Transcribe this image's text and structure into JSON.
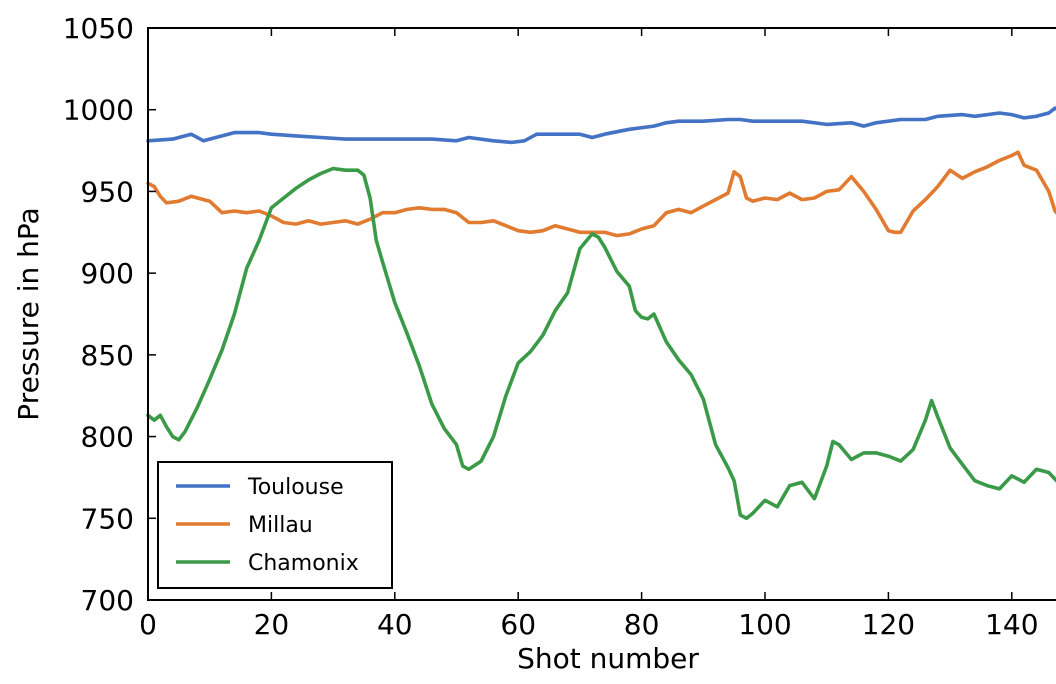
{
  "chart_data": {
    "type": "line",
    "xlabel": "Shot number",
    "ylabel": "Pressure in hPa",
    "xlim": [
      0,
      149
    ],
    "ylim": [
      700,
      1050
    ],
    "xticks": [
      0,
      20,
      40,
      60,
      80,
      100,
      120,
      140
    ],
    "yticks": [
      700,
      750,
      800,
      850,
      900,
      950,
      1000,
      1050
    ],
    "grid": false,
    "legend_position": "lower-left",
    "series": [
      {
        "name": "Toulouse",
        "color": "#4472c4",
        "points": [
          [
            0,
            981
          ],
          [
            4,
            982
          ],
          [
            6,
            984
          ],
          [
            7,
            985
          ],
          [
            9,
            981
          ],
          [
            12,
            984
          ],
          [
            14,
            986
          ],
          [
            18,
            986
          ],
          [
            20,
            985
          ],
          [
            24,
            984
          ],
          [
            28,
            983
          ],
          [
            32,
            982
          ],
          [
            36,
            982
          ],
          [
            40,
            982
          ],
          [
            46,
            982
          ],
          [
            50,
            981
          ],
          [
            52,
            983
          ],
          [
            56,
            981
          ],
          [
            59,
            980
          ],
          [
            61,
            981
          ],
          [
            63,
            985
          ],
          [
            66,
            985
          ],
          [
            70,
            985
          ],
          [
            72,
            983
          ],
          [
            74,
            985
          ],
          [
            78,
            988
          ],
          [
            82,
            990
          ],
          [
            84,
            992
          ],
          [
            86,
            993
          ],
          [
            90,
            993
          ],
          [
            94,
            994
          ],
          [
            96,
            994
          ],
          [
            98,
            993
          ],
          [
            102,
            993
          ],
          [
            106,
            993
          ],
          [
            110,
            991
          ],
          [
            114,
            992
          ],
          [
            116,
            990
          ],
          [
            118,
            992
          ],
          [
            122,
            994
          ],
          [
            124,
            994
          ],
          [
            126,
            994
          ],
          [
            128,
            996
          ],
          [
            132,
            997
          ],
          [
            134,
            996
          ],
          [
            138,
            998
          ],
          [
            140,
            997
          ],
          [
            142,
            995
          ],
          [
            144,
            996
          ],
          [
            146,
            998
          ],
          [
            147,
            1001
          ],
          [
            148,
            999
          ],
          [
            149,
            999
          ]
        ]
      },
      {
        "name": "Millau",
        "color": "#e07b30",
        "points": [
          [
            0,
            955
          ],
          [
            1,
            953
          ],
          [
            2,
            947
          ],
          [
            3,
            943
          ],
          [
            5,
            944
          ],
          [
            7,
            947
          ],
          [
            9,
            945
          ],
          [
            10,
            944
          ],
          [
            12,
            937
          ],
          [
            14,
            938
          ],
          [
            16,
            937
          ],
          [
            18,
            938
          ],
          [
            20,
            935
          ],
          [
            22,
            931
          ],
          [
            24,
            930
          ],
          [
            26,
            932
          ],
          [
            28,
            930
          ],
          [
            30,
            931
          ],
          [
            32,
            932
          ],
          [
            34,
            930
          ],
          [
            36,
            933
          ],
          [
            38,
            937
          ],
          [
            40,
            937
          ],
          [
            42,
            939
          ],
          [
            44,
            940
          ],
          [
            46,
            939
          ],
          [
            48,
            939
          ],
          [
            50,
            937
          ],
          [
            52,
            931
          ],
          [
            54,
            931
          ],
          [
            56,
            932
          ],
          [
            58,
            929
          ],
          [
            60,
            926
          ],
          [
            62,
            925
          ],
          [
            64,
            926
          ],
          [
            66,
            929
          ],
          [
            68,
            927
          ],
          [
            70,
            925
          ],
          [
            72,
            925
          ],
          [
            74,
            925
          ],
          [
            76,
            923
          ],
          [
            78,
            924
          ],
          [
            80,
            927
          ],
          [
            82,
            929
          ],
          [
            84,
            937
          ],
          [
            86,
            939
          ],
          [
            88,
            937
          ],
          [
            90,
            941
          ],
          [
            92,
            945
          ],
          [
            94,
            949
          ],
          [
            95,
            962
          ],
          [
            96,
            959
          ],
          [
            97,
            946
          ],
          [
            98,
            944
          ],
          [
            100,
            946
          ],
          [
            102,
            945
          ],
          [
            104,
            949
          ],
          [
            106,
            945
          ],
          [
            108,
            946
          ],
          [
            110,
            950
          ],
          [
            112,
            951
          ],
          [
            114,
            959
          ],
          [
            116,
            950
          ],
          [
            118,
            939
          ],
          [
            120,
            926
          ],
          [
            121,
            925
          ],
          [
            122,
            925
          ],
          [
            124,
            938
          ],
          [
            126,
            945
          ],
          [
            128,
            953
          ],
          [
            130,
            963
          ],
          [
            132,
            958
          ],
          [
            134,
            962
          ],
          [
            136,
            965
          ],
          [
            138,
            969
          ],
          [
            140,
            972
          ],
          [
            141,
            974
          ],
          [
            142,
            966
          ],
          [
            144,
            963
          ],
          [
            146,
            950
          ],
          [
            147,
            938
          ],
          [
            148,
            934
          ],
          [
            149,
            934
          ]
        ]
      },
      {
        "name": "Chamonix",
        "color": "#3a9a48",
        "points": [
          [
            0,
            813
          ],
          [
            1,
            810
          ],
          [
            2,
            813
          ],
          [
            3,
            806
          ],
          [
            4,
            800
          ],
          [
            5,
            798
          ],
          [
            6,
            803
          ],
          [
            8,
            818
          ],
          [
            10,
            835
          ],
          [
            12,
            853
          ],
          [
            14,
            875
          ],
          [
            16,
            903
          ],
          [
            18,
            920
          ],
          [
            20,
            940
          ],
          [
            22,
            946
          ],
          [
            24,
            952
          ],
          [
            26,
            957
          ],
          [
            28,
            961
          ],
          [
            30,
            964
          ],
          [
            32,
            963
          ],
          [
            34,
            963
          ],
          [
            35,
            960
          ],
          [
            36,
            946
          ],
          [
            37,
            920
          ],
          [
            38,
            907
          ],
          [
            40,
            882
          ],
          [
            42,
            863
          ],
          [
            44,
            843
          ],
          [
            46,
            820
          ],
          [
            48,
            805
          ],
          [
            50,
            795
          ],
          [
            51,
            782
          ],
          [
            52,
            780
          ],
          [
            54,
            785
          ],
          [
            56,
            800
          ],
          [
            58,
            825
          ],
          [
            60,
            845
          ],
          [
            62,
            852
          ],
          [
            64,
            862
          ],
          [
            66,
            877
          ],
          [
            68,
            888
          ],
          [
            70,
            915
          ],
          [
            72,
            924
          ],
          [
            73,
            922
          ],
          [
            74,
            916
          ],
          [
            76,
            901
          ],
          [
            78,
            892
          ],
          [
            79,
            877
          ],
          [
            80,
            873
          ],
          [
            81,
            872
          ],
          [
            82,
            875
          ],
          [
            84,
            858
          ],
          [
            86,
            847
          ],
          [
            88,
            838
          ],
          [
            90,
            823
          ],
          [
            92,
            795
          ],
          [
            94,
            781
          ],
          [
            95,
            773
          ],
          [
            96,
            752
          ],
          [
            97,
            750
          ],
          [
            98,
            753
          ],
          [
            100,
            761
          ],
          [
            102,
            757
          ],
          [
            104,
            770
          ],
          [
            106,
            772
          ],
          [
            108,
            762
          ],
          [
            110,
            782
          ],
          [
            111,
            797
          ],
          [
            112,
            795
          ],
          [
            114,
            786
          ],
          [
            116,
            790
          ],
          [
            118,
            790
          ],
          [
            120,
            788
          ],
          [
            122,
            785
          ],
          [
            124,
            792
          ],
          [
            126,
            810
          ],
          [
            127,
            822
          ],
          [
            128,
            812
          ],
          [
            130,
            793
          ],
          [
            132,
            783
          ],
          [
            134,
            773
          ],
          [
            136,
            770
          ],
          [
            138,
            768
          ],
          [
            140,
            776
          ],
          [
            142,
            772
          ],
          [
            144,
            780
          ],
          [
            146,
            778
          ],
          [
            148,
            770
          ],
          [
            149,
            782
          ]
        ]
      }
    ]
  }
}
